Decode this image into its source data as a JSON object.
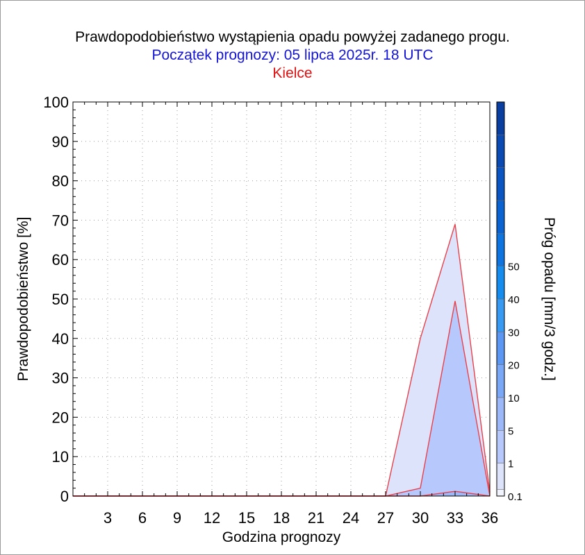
{
  "header": {
    "title": "Prawdopodobieństwo wystąpienia opadu powyżej zadanego progu.",
    "subtitle": "Początek prognozy: 05 lipca 2025r. 18 UTC",
    "station": "Kielce"
  },
  "chart_data": {
    "type": "area",
    "title": "Prawdopodobieństwo wystąpienia opadu powyżej zadanego progu.",
    "subtitle": "Początek prognozy: 05 lipca 2025r. 18 UTC",
    "station": "Kielce",
    "xlabel": "Godzina prognozy",
    "ylabel": "Prawdopodobieństwo [%]",
    "xlim": [
      0,
      36
    ],
    "ylim": [
      0,
      100
    ],
    "x_ticks": [
      3,
      6,
      9,
      12,
      15,
      18,
      21,
      24,
      27,
      30,
      33,
      36
    ],
    "y_ticks": [
      0,
      10,
      20,
      30,
      40,
      50,
      60,
      70,
      80,
      90,
      100
    ],
    "grid": true,
    "x": [
      0,
      3,
      6,
      9,
      12,
      15,
      18,
      21,
      24,
      27,
      30,
      33,
      36
    ],
    "series": [
      {
        "name": "0.1",
        "color": "#dde3fb",
        "values": [
          0,
          0,
          0,
          0,
          0,
          0,
          0,
          0,
          0,
          0,
          40,
          69,
          1
        ]
      },
      {
        "name": "1",
        "color": "#b7c9fc",
        "values": [
          0,
          0,
          0,
          0,
          0,
          0,
          0,
          0,
          0,
          0,
          2,
          49.5,
          0
        ]
      },
      {
        "name": "5",
        "color": "#9db8f8",
        "values": [
          0,
          0,
          0,
          0,
          0,
          0,
          0,
          0,
          0,
          0,
          0,
          1.2,
          0
        ]
      }
    ],
    "line_color": "#e8404a",
    "colorbar": {
      "label": "Próg opadu [mm/3 godz.]",
      "tick_labels": [
        "0.1",
        "1",
        "5",
        "10",
        "20",
        "30",
        "40",
        "50"
      ],
      "bands": [
        {
          "from": 0,
          "to": 1,
          "color": "#f1f3fd"
        },
        {
          "from": 1,
          "to": 5,
          "color": "#dde3fb"
        },
        {
          "from": 5,
          "to": 10,
          "color": "#b7c9fc"
        },
        {
          "from": 10,
          "to": 15,
          "color": "#9db8f8"
        },
        {
          "from": 15,
          "to": 20,
          "color": "#7aa7f6"
        },
        {
          "from": 20,
          "to": 25,
          "color": "#5b97f3"
        },
        {
          "from": 25,
          "to": 30,
          "color": "#389af2"
        },
        {
          "from": 30,
          "to": 35,
          "color": "#168cef"
        },
        {
          "from": 35,
          "to": 40,
          "color": "#0e74e0"
        },
        {
          "from": 40,
          "to": 45,
          "color": "#0b63d1"
        },
        {
          "from": 45,
          "to": 50,
          "color": "#0a55c2"
        },
        {
          "from": 50,
          "to": 55,
          "color": "#0a4ab2"
        },
        {
          "from": 55,
          "to": 60,
          "color": "#0a3fa0"
        }
      ],
      "range": [
        0,
        60
      ]
    }
  }
}
